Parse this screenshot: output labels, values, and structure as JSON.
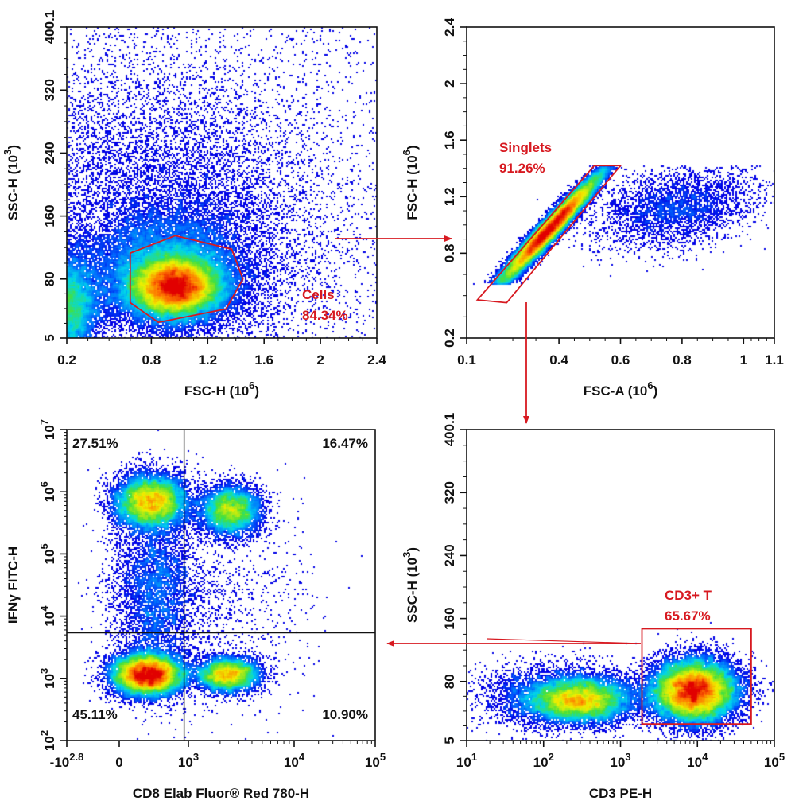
{
  "colors": {
    "gate": "#d71920",
    "axis": "#111111",
    "density_low": "#0000e6",
    "density_high": "#e60000"
  },
  "chart_data": [
    {
      "id": "cells",
      "type": "scatter",
      "subtype": "density-dot-plot",
      "xlabel": "FSC-H  (10^6)",
      "ylabel": "SSC-H  (10^3)",
      "x_axis": {
        "scale": "linear",
        "range": [
          0.2,
          2.4
        ],
        "ticks": [
          0.2,
          0.8,
          1.2,
          1.6,
          2,
          2.4
        ],
        "tick_labels": [
          "0.2",
          "0.8",
          "1.2",
          "1.6",
          "2",
          "2.4"
        ]
      },
      "y_axis": {
        "scale": "linear",
        "range": [
          5,
          400.1
        ],
        "ticks": [
          5,
          80,
          160,
          240,
          320,
          400.1
        ],
        "tick_labels": [
          "5",
          "80",
          "160",
          "240",
          "320",
          "400.1"
        ]
      },
      "populations": [
        {
          "cx": 0.97,
          "cy": 70,
          "sx": 0.16,
          "sy": 19,
          "rho": 0,
          "n": 26000
        },
        {
          "cx": 0.9,
          "cy": 90,
          "sx": 0.3,
          "sy": 38,
          "rho": 0,
          "n": 14000
        },
        {
          "cx": 0.95,
          "cy": 175,
          "sx": 0.55,
          "sy": 90,
          "rho": -0.2,
          "n": 9000
        },
        {
          "cx": 0.2,
          "cy": 45,
          "sx": 0.12,
          "sy": 35,
          "rho": 0,
          "n": 9000
        },
        {
          "uniform": true,
          "n": 1800
        }
      ],
      "gates": [
        {
          "name": "Cells",
          "percent": "84.34%",
          "shape": "polygon",
          "points": [
            [
              0.65,
              113
            ],
            [
              0.97,
              135
            ],
            [
              1.37,
              118
            ],
            [
              1.45,
              80
            ],
            [
              1.33,
              42
            ],
            [
              0.85,
              25
            ],
            [
              0.65,
              50
            ]
          ]
        }
      ]
    },
    {
      "id": "singlets",
      "type": "scatter",
      "subtype": "density-dot-plot",
      "xlabel": "FSC-A  (10^6)",
      "ylabel": "FSC-H  (10^6)",
      "x_axis": {
        "scale": "linear",
        "range": [
          0.1,
          1.1
        ],
        "ticks": [
          0.1,
          0.4,
          0.6,
          0.8,
          1,
          1.1
        ],
        "tick_labels": [
          "0.1",
          "0.4",
          "0.6",
          "0.8",
          "1",
          "1.1"
        ]
      },
      "y_axis": {
        "scale": "linear",
        "range": [
          0.2,
          2.4
        ],
        "ticks": [
          0.2,
          0.8,
          1.2,
          1.6,
          2,
          2.4
        ],
        "tick_labels": [
          "0.2",
          "0.8",
          "1.2",
          "1.6",
          "2",
          "2.4"
        ]
      },
      "populations": [
        {
          "cx": 0.37,
          "cy": 0.97,
          "sx": 0.085,
          "sy": 0.2,
          "rho": 0.97,
          "n": 22000,
          "ylim": [
            0.58,
            1.42
          ]
        },
        {
          "cx": 0.78,
          "cy": 1.12,
          "sx": 0.13,
          "sy": 0.14,
          "rho": 0.3,
          "n": 3500,
          "ylim": [
            0.6,
            1.42
          ]
        }
      ],
      "gates": [
        {
          "name": "Singlets",
          "percent": "91.26%",
          "shape": "polygon",
          "points": [
            [
              0.135,
              0.47
            ],
            [
              0.23,
              0.45
            ],
            [
              0.6,
              1.42
            ],
            [
              0.515,
              1.42
            ]
          ]
        }
      ]
    },
    {
      "id": "cd3",
      "type": "scatter",
      "subtype": "density-dot-plot",
      "xlabel": "CD3 PE-H",
      "ylabel": "SSC-H  (10^3)",
      "x_axis": {
        "scale": "log",
        "range": [
          10,
          100000
        ],
        "ticks": [
          10,
          100,
          1000,
          10000,
          100000
        ],
        "tick_labels": [
          "10^1",
          "10^2",
          "10^3",
          "10^4",
          "10^5"
        ]
      },
      "y_axis": {
        "scale": "linear",
        "range": [
          5,
          400.1
        ],
        "ticks": [
          5,
          80,
          160,
          240,
          320,
          400.1
        ],
        "tick_labels": [
          "5",
          "80",
          "160",
          "240",
          "320",
          "400.1"
        ]
      },
      "populations": [
        {
          "cx": 300,
          "cy": 56,
          "sx": 0.33,
          "sy": 14,
          "rho": 0,
          "n": 9000
        },
        {
          "cx": 150,
          "cy": 62,
          "sx": 0.5,
          "sy": 20,
          "rho": 0,
          "n": 4000
        },
        {
          "cx": 9000,
          "cy": 68,
          "sx": 0.28,
          "sy": 20,
          "rho": 0,
          "n": 20000
        }
      ],
      "gates": [
        {
          "name": "CD3+ T",
          "percent": "65.67%",
          "shape": "rectangle",
          "points": [
            [
              1900,
              26
            ],
            [
              50000,
              26
            ],
            [
              50000,
              147
            ],
            [
              1900,
              147
            ]
          ]
        }
      ]
    },
    {
      "id": "cd8-ifng",
      "type": "scatter",
      "subtype": "density-dot-plot-quadrant",
      "xlabel": "CD8 Elab Fluor® Red 780-H",
      "ylabel": "IFNγ FITC-H",
      "x_axis": {
        "scale": "biexponential",
        "range": [
          -631,
          100000
        ],
        "ticks": [
          -631,
          0,
          1000,
          10000,
          100000
        ],
        "tick_labels": [
          "-10^2.8",
          "0",
          "10^3",
          "10^4",
          "10^5"
        ]
      },
      "y_axis": {
        "scale": "log",
        "range": [
          100,
          10000000
        ],
        "ticks": [
          100,
          1000,
          10000,
          100000,
          1000000,
          10000000
        ],
        "tick_labels": [
          "10^2",
          "10^3",
          "10^4",
          "10^5",
          "10^6",
          "10^7"
        ]
      },
      "populations": [
        {
          "cx": 226,
          "cy": 700000,
          "sx": 0.3,
          "sy": 0.22,
          "rho": 0,
          "n": 9000
        },
        {
          "cx": 2500,
          "cy": 500000,
          "sx": 0.15,
          "sy": 0.2,
          "rho": 0,
          "n": 5000
        },
        {
          "cx": 190,
          "cy": 1150,
          "sx": 0.3,
          "sy": 0.17,
          "rho": 0,
          "n": 12000
        },
        {
          "cx": 2400,
          "cy": 1150,
          "sx": 0.15,
          "sy": 0.14,
          "rho": 0,
          "n": 5000
        },
        {
          "cx": 260,
          "cy": 25000,
          "sx": 0.35,
          "sy": 0.7,
          "rho": 0,
          "n": 4500
        },
        {
          "cx": 1500,
          "cy": 20000,
          "sx": 0.5,
          "sy": 0.9,
          "rho": 0,
          "n": 1200
        }
      ],
      "quadrant": {
        "x_threshold": 850,
        "y_threshold": 5400
      },
      "quadrant_percentages": {
        "upper_left": "27.51%",
        "upper_right": "16.47%",
        "lower_left": "45.11%",
        "lower_right": "10.90%"
      }
    }
  ],
  "gating_flow": [
    "Cells → Singlets",
    "Singlets → CD3+ T",
    "CD3+ T → CD8 / IFNγ"
  ]
}
